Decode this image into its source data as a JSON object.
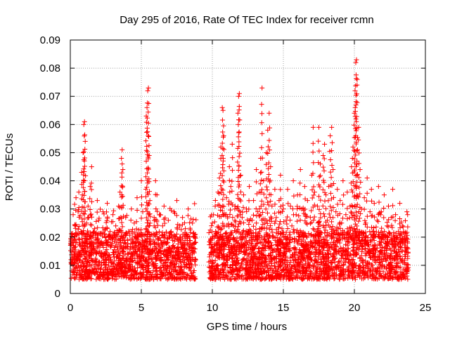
{
  "chart_data": {
    "type": "scatter",
    "title": "Day 295 of 2016, Rate Of TEC Index for receiver rcmn",
    "xlabel": "GPS time / hours",
    "ylabel": "ROTI / TECUs",
    "xlim": [
      0,
      25
    ],
    "ylim": [
      0,
      0.09
    ],
    "xticks": [
      0,
      5,
      10,
      15,
      20,
      25
    ],
    "xtick_labels": [
      "0",
      "5",
      "10",
      "15",
      "20",
      "25"
    ],
    "yticks": [
      0,
      0.01,
      0.02,
      0.03,
      0.04,
      0.05,
      0.06,
      0.07,
      0.08,
      0.09
    ],
    "ytick_labels": [
      "0",
      "0.01",
      "0.02",
      "0.03",
      "0.04",
      "0.05",
      "0.06",
      "0.07",
      "0.08",
      "0.09"
    ],
    "grid": true,
    "marker": "plus",
    "series": [
      {
        "name": "ROTI",
        "color": "#ff0000",
        "points": [
          [
            0.05,
            0.012
          ],
          [
            0.1,
            0.008
          ],
          [
            0.15,
            0.021
          ],
          [
            0.2,
            0.028
          ],
          [
            0.25,
            0.015
          ],
          [
            0.3,
            0.011
          ],
          [
            0.35,
            0.024
          ],
          [
            0.4,
            0.034
          ],
          [
            0.45,
            0.018
          ],
          [
            0.5,
            0.013
          ],
          [
            0.55,
            0.029
          ],
          [
            0.6,
            0.036
          ],
          [
            0.65,
            0.009
          ],
          [
            0.7,
            0.017
          ],
          [
            0.75,
            0.022
          ],
          [
            0.8,
            0.043
          ],
          [
            0.85,
            0.035
          ],
          [
            0.9,
            0.05
          ],
          [
            0.95,
            0.06
          ],
          [
            1.0,
            0.061
          ],
          [
            1.05,
            0.054
          ],
          [
            1.1,
            0.014
          ],
          [
            1.15,
            0.025
          ],
          [
            1.2,
            0.019
          ],
          [
            1.25,
            0.031
          ],
          [
            1.3,
            0.027
          ],
          [
            1.4,
            0.038
          ],
          [
            1.5,
            0.045
          ],
          [
            1.6,
            0.016
          ],
          [
            1.7,
            0.023
          ],
          [
            1.8,
            0.012
          ],
          [
            1.9,
            0.033
          ],
          [
            2.0,
            0.026
          ],
          [
            2.1,
            0.018
          ],
          [
            2.2,
            0.01
          ],
          [
            2.3,
            0.029
          ],
          [
            2.4,
            0.021
          ],
          [
            2.5,
            0.015
          ],
          [
            2.6,
            0.032
          ],
          [
            2.7,
            0.011
          ],
          [
            2.8,
            0.022
          ],
          [
            2.9,
            0.017
          ],
          [
            3.0,
            0.028
          ],
          [
            3.1,
            0.013
          ],
          [
            3.2,
            0.024
          ],
          [
            3.3,
            0.009
          ],
          [
            3.4,
            0.031
          ],
          [
            3.5,
            0.036
          ],
          [
            3.6,
            0.048
          ],
          [
            3.65,
            0.051
          ],
          [
            3.7,
            0.044
          ],
          [
            3.8,
            0.019
          ],
          [
            3.9,
            0.027
          ],
          [
            4.0,
            0.016
          ],
          [
            4.1,
            0.022
          ],
          [
            4.2,
            0.012
          ],
          [
            4.3,
            0.03
          ],
          [
            4.4,
            0.018
          ],
          [
            4.5,
            0.025
          ],
          [
            4.6,
            0.011
          ],
          [
            4.7,
            0.034
          ],
          [
            4.8,
            0.02
          ],
          [
            4.9,
            0.014
          ],
          [
            5.0,
            0.04
          ],
          [
            5.1,
            0.029
          ],
          [
            5.2,
            0.017
          ],
          [
            5.3,
            0.023
          ],
          [
            5.35,
            0.063
          ],
          [
            5.4,
            0.066
          ],
          [
            5.45,
            0.072
          ],
          [
            5.5,
            0.073
          ],
          [
            5.55,
            0.049
          ],
          [
            5.6,
            0.033
          ],
          [
            5.7,
            0.021
          ],
          [
            5.8,
            0.015
          ],
          [
            5.9,
            0.027
          ],
          [
            6.0,
            0.04
          ],
          [
            6.1,
            0.035
          ],
          [
            6.2,
            0.019
          ],
          [
            6.3,
            0.028
          ],
          [
            6.4,
            0.012
          ],
          [
            6.5,
            0.024
          ],
          [
            6.6,
            0.031
          ],
          [
            6.7,
            0.018
          ],
          [
            6.8,
            0.01
          ],
          [
            6.9,
            0.026
          ],
          [
            7.0,
            0.016
          ],
          [
            7.1,
            0.022
          ],
          [
            7.2,
            0.013
          ],
          [
            7.3,
            0.029
          ],
          [
            7.4,
            0.02
          ],
          [
            7.5,
            0.033
          ],
          [
            7.6,
            0.015
          ],
          [
            7.7,
            0.024
          ],
          [
            7.8,
            0.011
          ],
          [
            7.9,
            0.027
          ],
          [
            8.0,
            0.018
          ],
          [
            8.1,
            0.023
          ],
          [
            8.2,
            0.014
          ],
          [
            8.3,
            0.03
          ],
          [
            8.4,
            0.02
          ],
          [
            8.5,
            0.012
          ],
          [
            8.6,
            0.025
          ],
          [
            8.7,
            0.016
          ],
          [
            8.8,
            0.021
          ],
          [
            9.8,
            0.013
          ],
          [
            9.9,
            0.019
          ],
          [
            10.0,
            0.025
          ],
          [
            10.1,
            0.011
          ],
          [
            10.2,
            0.031
          ],
          [
            10.3,
            0.017
          ],
          [
            10.4,
            0.036
          ],
          [
            10.5,
            0.041
          ],
          [
            10.6,
            0.052
          ],
          [
            10.7,
            0.066
          ],
          [
            10.75,
            0.065
          ],
          [
            10.8,
            0.056
          ],
          [
            10.9,
            0.028
          ],
          [
            11.0,
            0.034
          ],
          [
            11.1,
            0.02
          ],
          [
            11.2,
            0.045
          ],
          [
            11.3,
            0.038
          ],
          [
            11.4,
            0.053
          ],
          [
            11.5,
            0.024
          ],
          [
            11.6,
            0.031
          ],
          [
            11.7,
            0.015
          ],
          [
            11.8,
            0.064
          ],
          [
            11.85,
            0.07
          ],
          [
            11.9,
            0.071
          ],
          [
            12.0,
            0.042
          ],
          [
            12.1,
            0.027
          ],
          [
            12.2,
            0.035
          ],
          [
            12.3,
            0.018
          ],
          [
            12.4,
            0.03
          ],
          [
            12.5,
            0.022
          ],
          [
            12.6,
            0.038
          ],
          [
            12.7,
            0.012
          ],
          [
            12.8,
            0.026
          ],
          [
            12.9,
            0.033
          ],
          [
            13.0,
            0.019
          ],
          [
            13.1,
            0.044
          ],
          [
            13.2,
            0.029
          ],
          [
            13.3,
            0.036
          ],
          [
            13.4,
            0.048
          ],
          [
            13.5,
            0.073
          ],
          [
            13.6,
            0.04
          ],
          [
            13.7,
            0.025
          ],
          [
            13.8,
            0.05
          ],
          [
            13.9,
            0.058
          ],
          [
            14.0,
            0.064
          ],
          [
            14.1,
            0.045
          ],
          [
            14.2,
            0.031
          ],
          [
            14.3,
            0.02
          ],
          [
            14.4,
            0.037
          ],
          [
            14.5,
            0.027
          ],
          [
            14.6,
            0.016
          ],
          [
            14.7,
            0.033
          ],
          [
            14.8,
            0.042
          ],
          [
            14.9,
            0.023
          ],
          [
            15.0,
            0.03
          ],
          [
            15.1,
            0.014
          ],
          [
            15.2,
            0.026
          ],
          [
            15.3,
            0.037
          ],
          [
            15.4,
            0.019
          ],
          [
            15.5,
            0.031
          ],
          [
            15.6,
            0.024
          ],
          [
            15.7,
            0.04
          ],
          [
            15.8,
            0.012
          ],
          [
            15.9,
            0.028
          ],
          [
            16.0,
            0.035
          ],
          [
            16.1,
            0.021
          ],
          [
            16.2,
            0.044
          ],
          [
            16.3,
            0.03
          ],
          [
            16.4,
            0.017
          ],
          [
            16.5,
            0.038
          ],
          [
            16.6,
            0.025
          ],
          [
            16.7,
            0.033
          ],
          [
            16.8,
            0.013
          ],
          [
            16.9,
            0.027
          ],
          [
            17.0,
            0.042
          ],
          [
            17.1,
            0.059
          ],
          [
            17.2,
            0.036
          ],
          [
            17.3,
            0.022
          ],
          [
            17.4,
            0.031
          ],
          [
            17.5,
            0.059
          ],
          [
            17.6,
            0.046
          ],
          [
            17.7,
            0.018
          ],
          [
            17.8,
            0.049
          ],
          [
            17.9,
            0.053
          ],
          [
            18.0,
            0.035
          ],
          [
            18.1,
            0.026
          ],
          [
            18.2,
            0.038
          ],
          [
            18.3,
            0.056
          ],
          [
            18.4,
            0.059
          ],
          [
            18.5,
            0.044
          ],
          [
            18.6,
            0.016
          ],
          [
            18.7,
            0.029
          ],
          [
            18.8,
            0.037
          ],
          [
            18.9,
            0.021
          ],
          [
            19.0,
            0.033
          ],
          [
            19.1,
            0.025
          ],
          [
            19.2,
            0.04
          ],
          [
            19.3,
            0.014
          ],
          [
            19.4,
            0.028
          ],
          [
            19.5,
            0.036
          ],
          [
            19.6,
            0.02
          ],
          [
            19.7,
            0.031
          ],
          [
            19.8,
            0.045
          ],
          [
            19.9,
            0.052
          ],
          [
            20.0,
            0.064
          ],
          [
            20.05,
            0.072
          ],
          [
            20.1,
            0.082
          ],
          [
            20.15,
            0.083
          ],
          [
            20.2,
            0.076
          ],
          [
            20.3,
            0.059
          ],
          [
            20.4,
            0.044
          ],
          [
            20.5,
            0.03
          ],
          [
            20.6,
            0.019
          ],
          [
            20.7,
            0.034
          ],
          [
            20.8,
            0.025
          ],
          [
            20.9,
            0.041
          ],
          [
            21.0,
            0.015
          ],
          [
            21.1,
            0.029
          ],
          [
            21.2,
            0.037
          ],
          [
            21.3,
            0.02
          ],
          [
            21.4,
            0.032
          ],
          [
            21.5,
            0.011
          ],
          [
            21.6,
            0.026
          ],
          [
            21.7,
            0.038
          ],
          [
            21.8,
            0.017
          ],
          [
            21.9,
            0.029
          ],
          [
            22.0,
            0.021
          ],
          [
            22.1,
            0.035
          ],
          [
            22.2,
            0.012
          ],
          [
            22.3,
            0.024
          ],
          [
            22.4,
            0.031
          ],
          [
            22.5,
            0.016
          ],
          [
            22.6,
            0.027
          ],
          [
            22.7,
            0.037
          ],
          [
            22.8,
            0.019
          ],
          [
            22.9,
            0.028
          ],
          [
            23.0,
            0.013
          ],
          [
            23.1,
            0.022
          ],
          [
            23.2,
            0.032
          ],
          [
            23.3,
            0.015
          ],
          [
            23.4,
            0.024
          ],
          [
            23.5,
            0.011
          ],
          [
            23.6,
            0.018
          ],
          [
            23.7,
            0.029
          ],
          [
            23.75,
            0.028
          ]
        ],
        "band_segments": [
          [
            0.0,
            8.85
          ],
          [
            9.75,
            23.8
          ]
        ],
        "band_range": [
          0.005,
          0.022
        ],
        "band_density_per_hour": 160
      }
    ]
  }
}
